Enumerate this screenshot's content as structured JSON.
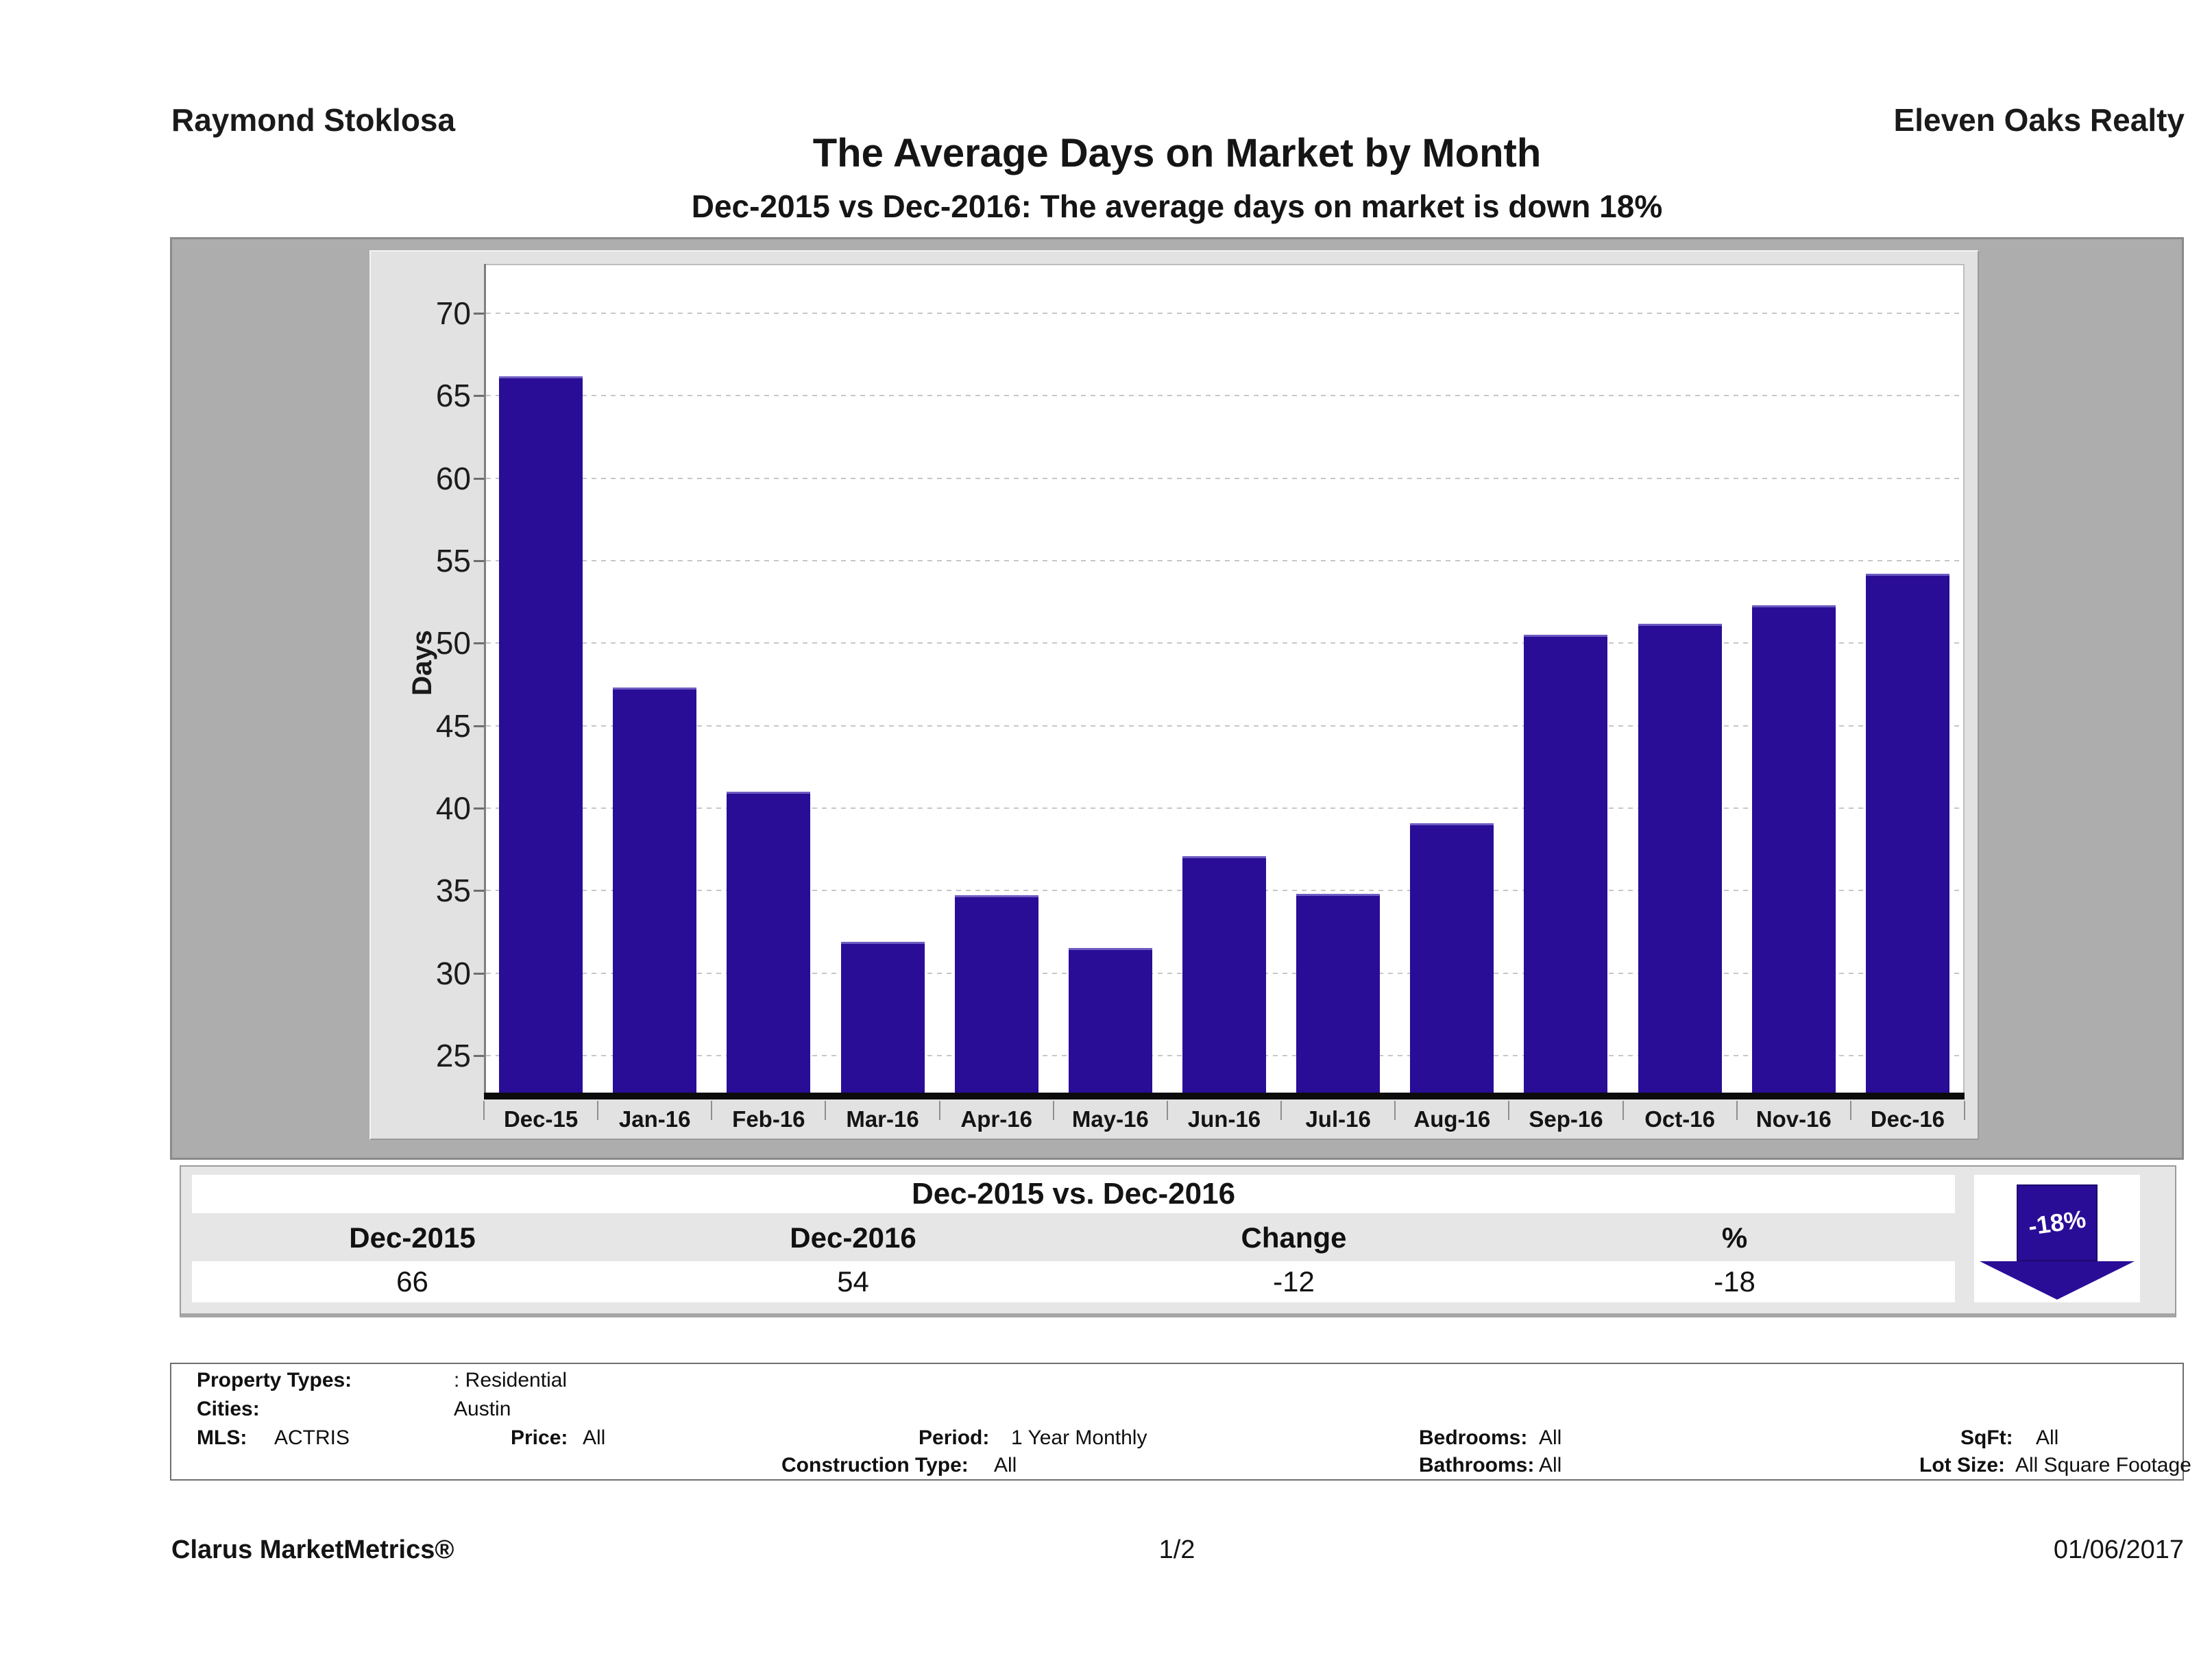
{
  "header": {
    "agent_name": "Raymond Stoklosa",
    "company_name": "Eleven Oaks Realty",
    "title": "The Average Days on Market by Month",
    "subtitle": "Dec-2015 vs Dec-2016: The average days on market is down 18%"
  },
  "chart_data": {
    "type": "bar",
    "title": "The Average Days on Market by Month",
    "categories": [
      "Dec-15",
      "Jan-16",
      "Feb-16",
      "Mar-16",
      "Apr-16",
      "May-16",
      "Jun-16",
      "Jul-16",
      "Aug-16",
      "Sep-16",
      "Oct-16",
      "Nov-16",
      "Dec-16"
    ],
    "values": [
      66.2,
      47.3,
      41.0,
      31.9,
      34.7,
      31.5,
      37.1,
      34.8,
      39.1,
      50.5,
      51.2,
      52.3,
      54.2
    ],
    "xlabel": "",
    "ylabel": "Days",
    "yticks": [
      25,
      30,
      35,
      40,
      45,
      50,
      55,
      60,
      65,
      70
    ],
    "ylim": [
      22.75,
      73
    ],
    "grid": "horizontal-dotted",
    "legend": "none",
    "bar_color": "#2a0d96",
    "bar_top_edge_color": "#6e5cc2",
    "plot_background": "#ffffff",
    "panel_background": "#e2e2e2",
    "frame_background": "#adadad"
  },
  "summary_table": {
    "title": "Dec-2015 vs. Dec-2016",
    "columns": [
      "Dec-2015",
      "Dec-2016",
      "Change",
      "%"
    ],
    "values": [
      "66",
      "54",
      "-12",
      "-18"
    ],
    "arrow_label": "-18%",
    "arrow_color": "#2a0d96",
    "arrow_direction": "down"
  },
  "filters": {
    "property_types_label": "Property Types:",
    "property_types_value": ": Residential",
    "cities_label": "Cities:",
    "cities_value": "Austin",
    "mls_label": "MLS:",
    "mls_value": "ACTRIS",
    "price_label": "Price:",
    "price_value": "All",
    "period_label": "Period:",
    "period_value": "1 Year Monthly",
    "bedrooms_label": "Bedrooms:",
    "bedrooms_value": "All",
    "sqft_label": "SqFt:",
    "sqft_value": "All",
    "construction_label": "Construction Type:",
    "construction_value": "All",
    "bathrooms_label": "Bathrooms:",
    "bathrooms_value": "All",
    "lot_size_label": "Lot Size:",
    "lot_size_value": "All Square Footage"
  },
  "footer": {
    "brand": "Clarus MarketMetrics®",
    "page": "1/2",
    "date": "01/06/2017"
  }
}
